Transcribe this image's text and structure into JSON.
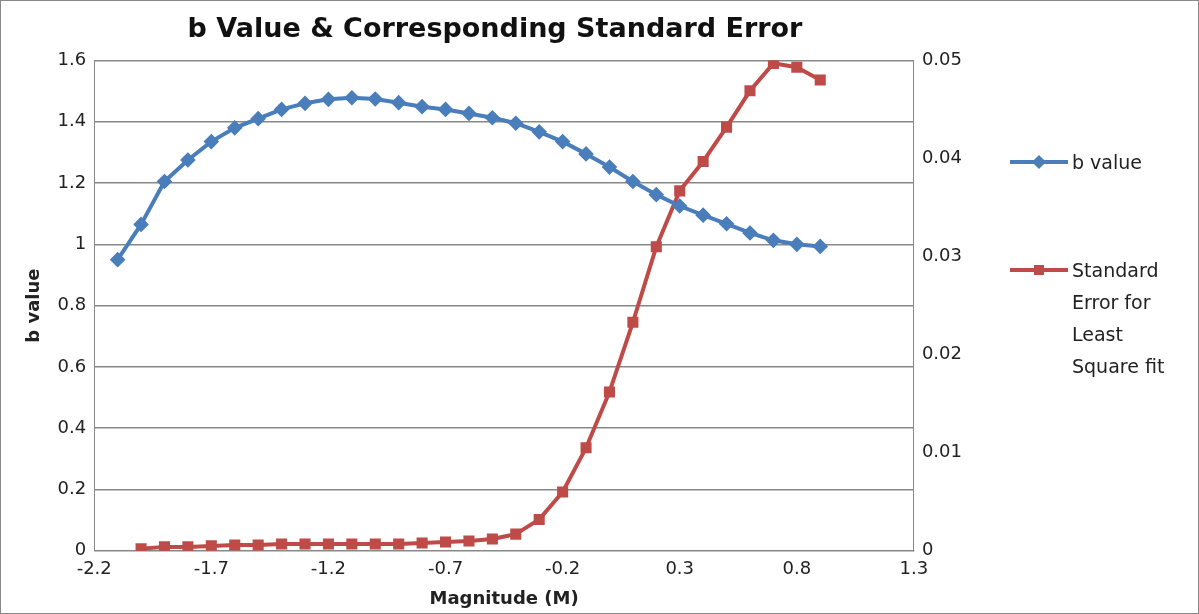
{
  "chart_data": {
    "type": "line",
    "title": "b Value & Corresponding Standard Error",
    "xlabel": "Magnitude (M)",
    "ylabel": "b value",
    "xlim": [
      -2.2,
      1.3
    ],
    "xticks": [
      -2.2,
      -1.7,
      -1.2,
      -0.7,
      -0.2,
      0.3,
      0.8,
      1.3
    ],
    "ylim": [
      0,
      1.6
    ],
    "yticks": [
      0,
      0.2,
      0.4,
      0.6,
      0.8,
      1,
      1.2,
      1.4,
      1.6
    ],
    "y2lim": [
      0,
      0.05
    ],
    "y2ticks": [
      0,
      0.01,
      0.02,
      0.03,
      0.04,
      0.05
    ],
    "grid": "y",
    "legend": "right",
    "line_style": "solid",
    "series": [
      {
        "name": "b value",
        "color": "#4a7ebb",
        "marker": "diamond",
        "x": [
          -2.1,
          -2.0,
          -1.9,
          -1.8,
          -1.7,
          -1.6,
          -1.5,
          -1.4,
          -1.3,
          -1.2,
          -1.1,
          -1.0,
          -0.9,
          -0.8,
          -0.7,
          -0.6,
          -0.5,
          -0.4,
          -0.3,
          -0.2,
          -0.1,
          0.0,
          0.1,
          0.2,
          0.3,
          0.4,
          0.5,
          0.6,
          0.7,
          0.8,
          0.9
        ],
        "values": [
          0.95,
          1.065,
          1.205,
          1.275,
          1.335,
          1.38,
          1.41,
          1.44,
          1.46,
          1.473,
          1.478,
          1.474,
          1.462,
          1.449,
          1.44,
          1.427,
          1.413,
          1.395,
          1.367,
          1.335,
          1.295,
          1.252,
          1.205,
          1.162,
          1.125,
          1.095,
          1.067,
          1.037,
          1.013,
          1.0,
          0.993
        ]
      },
      {
        "name": "Standard Error for Least Square fit",
        "color": "#be4b48",
        "marker": "square",
        "axis": "y2",
        "x": [
          -2.0,
          -1.9,
          -1.8,
          -1.7,
          -1.6,
          -1.5,
          -1.4,
          -1.3,
          -1.2,
          -1.1,
          -1.0,
          -0.9,
          -0.8,
          -0.7,
          -0.6,
          -0.5,
          -0.4,
          -0.3,
          -0.2,
          -0.1,
          0.0,
          0.1,
          0.2,
          0.3,
          0.4,
          0.5,
          0.6,
          0.7,
          0.8,
          0.9
        ],
        "values": [
          0.0002,
          0.0004,
          0.0004,
          0.0005,
          0.0006,
          0.0006,
          0.0007,
          0.0007,
          0.0007,
          0.0007,
          0.0007,
          0.0007,
          0.0008,
          0.0009,
          0.001,
          0.0012,
          0.0017,
          0.0032,
          0.006,
          0.0105,
          0.0162,
          0.0233,
          0.031,
          0.0367,
          0.0397,
          0.0432,
          0.0469,
          0.0497,
          0.0493,
          0.048
        ]
      }
    ]
  }
}
